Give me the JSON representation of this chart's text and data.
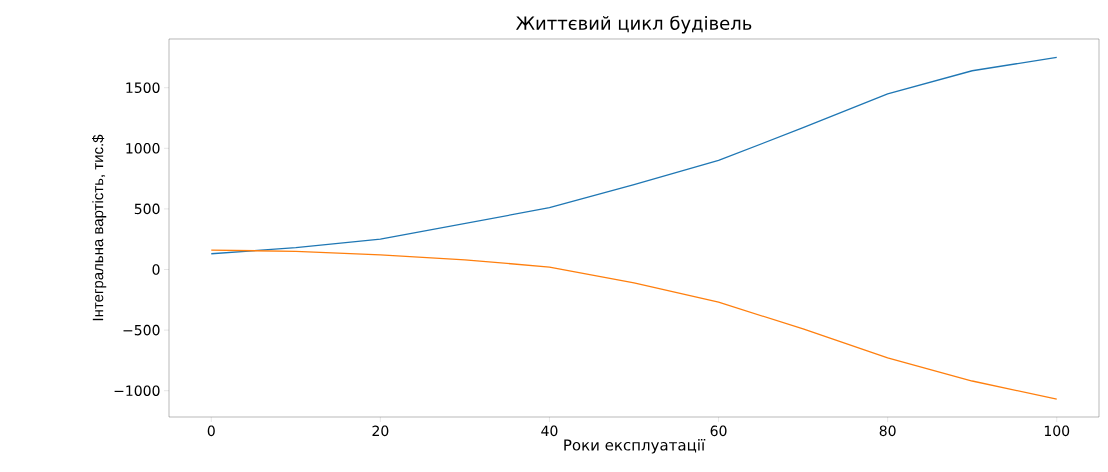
{
  "chart_data": {
    "type": "line",
    "title": "Життєвий цикл будівель",
    "xlabel": "Роки експлуатації",
    "ylabel": "Інтегральна вартість, тис.$",
    "x": [
      0,
      10,
      20,
      30,
      40,
      50,
      60,
      70,
      80,
      90,
      100
    ],
    "series": [
      {
        "color": "#1f77b4",
        "values": [
          130,
          180,
          250,
          380,
          510,
          700,
          900,
          1170,
          1450,
          1640,
          1750
        ]
      },
      {
        "color": "#ff7f0e",
        "values": [
          160,
          150,
          120,
          80,
          20,
          -110,
          -270,
          -490,
          -730,
          -920,
          -1070
        ]
      }
    ],
    "xlim": [
      -5,
      105
    ],
    "ylim": [
      -1217,
      1902
    ],
    "xticks": [
      0,
      20,
      40,
      60,
      80,
      100
    ],
    "yticks": [
      {
        "value": -1000,
        "label": "−1000"
      },
      {
        "value": -500,
        "label": "−500"
      },
      0,
      500,
      1000,
      1500
    ],
    "grid": false,
    "marker": "none",
    "line_style": "solid"
  }
}
